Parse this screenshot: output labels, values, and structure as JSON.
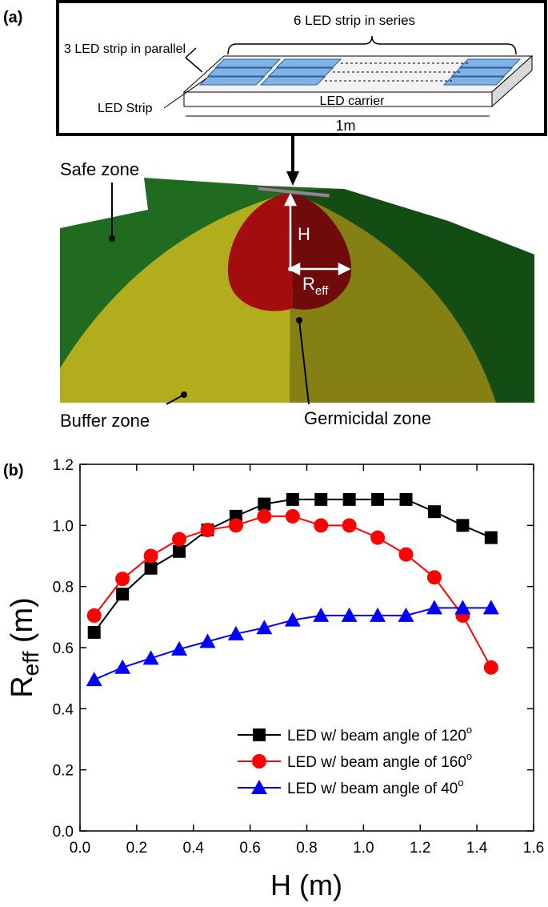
{
  "panel_a": {
    "panel_label": "(a)",
    "series_label": "6 LED strip in series",
    "parallel_label": "3 LED strip in parallel",
    "strip_label": "LED Strip",
    "carrier_label": "LED carrier",
    "length_label": "1m",
    "safe_zone": "Safe zone",
    "height_label": "H",
    "radius_main": "R",
    "radius_sub": "eff",
    "buffer_zone": "Buffer zone",
    "germicidal_zone": "Germicidal zone"
  },
  "chart_data": {
    "type": "line",
    "panel_label": "(b)",
    "xlabel": "H (m)",
    "ylabel": {
      "main": "R",
      "sub": "eff",
      "rest": " (m)"
    },
    "x": [
      0.05,
      0.15,
      0.25,
      0.35,
      0.45,
      0.55,
      0.65,
      0.75,
      0.85,
      0.95,
      1.05,
      1.15,
      1.25,
      1.35,
      1.45
    ],
    "series": [
      {
        "name": "LED w/ beam angle of 120",
        "name_superscript": "o",
        "color": "#000000",
        "marker": "square",
        "values": [
          0.65,
          0.775,
          0.86,
          0.915,
          0.985,
          1.03,
          1.07,
          1.085,
          1.085,
          1.085,
          1.085,
          1.085,
          1.045,
          1.0,
          0.96
        ]
      },
      {
        "name": "LED w/ beam angle of 160",
        "name_superscript": "o",
        "color": "#ff0000",
        "marker": "circle",
        "values": [
          0.705,
          0.825,
          0.9,
          0.955,
          0.985,
          1.0,
          1.03,
          1.03,
          1.0,
          1.0,
          0.96,
          0.905,
          0.83,
          0.705,
          0.535
        ]
      },
      {
        "name": "LED w/ beam angle of 40",
        "name_superscript": "o",
        "color": "#0000ff",
        "marker": "triangle",
        "values": [
          0.495,
          0.535,
          0.565,
          0.595,
          0.62,
          0.645,
          0.665,
          0.69,
          0.705,
          0.705,
          0.705,
          0.705,
          0.73,
          0.73,
          0.73
        ]
      }
    ],
    "xlim": [
      0,
      1.6
    ],
    "xticks": [
      {
        "value": 0,
        "label": "0.0"
      },
      0.2,
      0.4,
      0.6,
      0.8,
      {
        "value": 1,
        "label": "1.0"
      },
      1.2,
      1.4,
      1.6
    ],
    "ylim": [
      0,
      1.2
    ],
    "yticks": [
      {
        "value": 0,
        "label": "0.0"
      },
      0.2,
      0.4,
      0.6,
      0.8,
      {
        "value": 1,
        "label": "1.0"
      },
      1.2
    ],
    "legend": "lower right"
  }
}
